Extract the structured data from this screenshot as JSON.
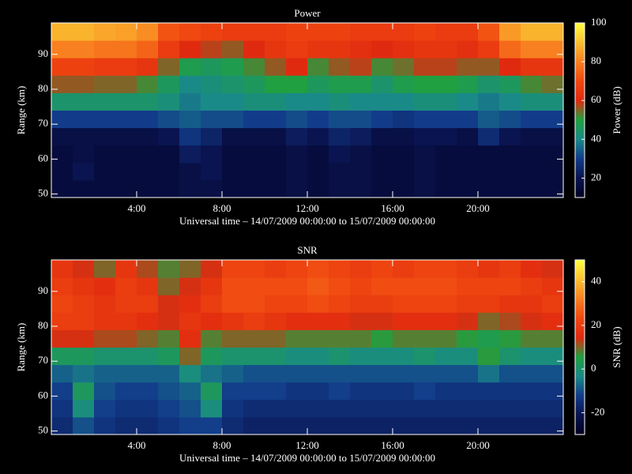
{
  "chart_data": [
    {
      "type": "heatmap",
      "title": "Power",
      "xlabel": "Universal time – 14/07/2009 00:00:00 to 15/07/2009 00:00:00",
      "ylabel": "Range (km)",
      "colorbar_label": "Power (dB)",
      "x": [
        0,
        1,
        2,
        3,
        4,
        5,
        6,
        7,
        8,
        9,
        10,
        11,
        12,
        13,
        14,
        15,
        16,
        17,
        18,
        19,
        20,
        21,
        22,
        23
      ],
      "y": [
        49,
        54,
        59,
        64,
        69,
        74,
        79,
        84,
        89,
        94
      ],
      "z": [
        [
          16,
          16,
          16,
          16,
          16,
          16,
          18,
          18,
          16,
          16,
          16,
          18,
          16,
          18,
          18,
          16,
          16,
          18,
          16,
          16,
          16,
          16,
          16,
          16
        ],
        [
          16,
          20,
          16,
          16,
          16,
          16,
          18,
          20,
          16,
          16,
          16,
          18,
          16,
          18,
          18,
          16,
          16,
          18,
          16,
          16,
          16,
          16,
          16,
          16
        ],
        [
          16,
          18,
          16,
          16,
          16,
          16,
          22,
          20,
          16,
          16,
          16,
          18,
          16,
          20,
          18,
          16,
          16,
          18,
          16,
          16,
          16,
          16,
          16,
          16
        ],
        [
          18,
          18,
          18,
          18,
          18,
          20,
          28,
          24,
          18,
          18,
          18,
          22,
          20,
          24,
          22,
          18,
          18,
          20,
          20,
          18,
          26,
          20,
          18,
          18
        ],
        [
          30,
          30,
          30,
          30,
          30,
          32,
          34,
          32,
          32,
          30,
          30,
          32,
          30,
          32,
          32,
          30,
          28,
          30,
          30,
          30,
          34,
          32,
          30,
          30
        ],
        [
          44,
          44,
          44,
          44,
          44,
          42,
          38,
          40,
          40,
          42,
          42,
          40,
          40,
          42,
          40,
          40,
          40,
          42,
          42,
          40,
          38,
          40,
          42,
          42
        ],
        [
          56,
          56,
          55,
          55,
          52,
          46,
          40,
          42,
          44,
          46,
          50,
          50,
          46,
          48,
          48,
          44,
          48,
          50,
          50,
          48,
          44,
          46,
          52,
          54
        ],
        [
          68,
          68,
          66,
          66,
          64,
          55,
          48,
          46,
          48,
          52,
          56,
          60,
          52,
          56,
          58,
          52,
          54,
          58,
          58,
          56,
          56,
          60,
          64,
          64
        ],
        [
          80,
          80,
          78,
          78,
          75,
          66,
          60,
          58,
          56,
          60,
          64,
          66,
          64,
          64,
          62,
          60,
          62,
          64,
          64,
          62,
          66,
          76,
          80,
          80
        ],
        [
          88,
          88,
          86,
          85,
          82,
          72,
          70,
          68,
          66,
          66,
          66,
          68,
          68,
          68,
          66,
          66,
          66,
          68,
          66,
          66,
          72,
          84,
          88,
          88
        ]
      ],
      "xlim": [
        0,
        24
      ],
      "ylim": [
        49,
        99
      ],
      "xticks": [
        {
          "value": 4,
          "label": "4:00"
        },
        {
          "value": 8,
          "label": "8:00"
        },
        {
          "value": 12,
          "label": "12:00"
        },
        {
          "value": 16,
          "label": "16:00"
        },
        {
          "value": 20,
          "label": "20:00"
        }
      ],
      "yticks": [
        50,
        60,
        70,
        80,
        90
      ],
      "zlim": [
        10,
        100
      ],
      "zticks": [
        20,
        40,
        60,
        80,
        100
      ],
      "colormap": [
        "#000020",
        "#0a1450",
        "#123c8a",
        "#1a8a88",
        "#20a040",
        "#e02a10",
        "#f04810",
        "#f88020",
        "#fbc030",
        "#ffff40"
      ]
    },
    {
      "type": "heatmap",
      "title": "SNR",
      "xlabel": "Universal time – 14/07/2009 00:00:00 to 15/07/2009 00:00:00",
      "ylabel": "Range (km)",
      "colorbar_label": "SNR (dB)",
      "x": [
        0,
        1,
        2,
        3,
        4,
        5,
        6,
        7,
        8,
        9,
        10,
        11,
        12,
        13,
        14,
        15,
        16,
        17,
        18,
        19,
        20,
        21,
        22,
        23
      ],
      "y": [
        49,
        54,
        59,
        64,
        69,
        74,
        79,
        84,
        89,
        94
      ],
      "z": [
        [
          -16,
          -10,
          -14,
          -16,
          -16,
          -14,
          -12,
          -12,
          -16,
          -18,
          -18,
          -18,
          -18,
          -18,
          -18,
          -18,
          -18,
          -18,
          -18,
          -18,
          -18,
          -18,
          -18,
          -18
        ],
        [
          -14,
          -2,
          -12,
          -14,
          -14,
          -12,
          -10,
          -2,
          -14,
          -16,
          -16,
          -16,
          -16,
          -16,
          -16,
          -16,
          -16,
          -16,
          -16,
          -16,
          -16,
          -16,
          -16,
          -16
        ],
        [
          -12,
          2,
          -10,
          -12,
          -12,
          -10,
          -8,
          2,
          -12,
          -12,
          -12,
          -14,
          -14,
          -12,
          -14,
          -14,
          -14,
          -12,
          -14,
          -14,
          -14,
          -14,
          -14,
          -14
        ],
        [
          -8,
          -6,
          -8,
          -8,
          -8,
          -8,
          -2,
          -6,
          -8,
          -10,
          -10,
          -10,
          -10,
          -10,
          -10,
          -10,
          -10,
          -10,
          -10,
          -10,
          -6,
          -10,
          -10,
          -10
        ],
        [
          2,
          2,
          0,
          0,
          0,
          2,
          10,
          2,
          0,
          0,
          0,
          -2,
          -2,
          0,
          -2,
          -2,
          -2,
          0,
          -2,
          -2,
          6,
          0,
          -2,
          -2
        ],
        [
          14,
          14,
          12,
          12,
          10,
          8,
          16,
          8,
          10,
          10,
          10,
          8,
          8,
          8,
          8,
          6,
          8,
          8,
          8,
          6,
          4,
          6,
          8,
          8
        ],
        [
          20,
          20,
          18,
          18,
          16,
          14,
          18,
          16,
          18,
          20,
          18,
          16,
          16,
          16,
          14,
          14,
          16,
          16,
          16,
          14,
          10,
          12,
          14,
          16
        ],
        [
          22,
          20,
          18,
          20,
          20,
          14,
          16,
          20,
          24,
          24,
          22,
          22,
          24,
          22,
          20,
          20,
          22,
          22,
          22,
          20,
          20,
          18,
          18,
          20
        ],
        [
          20,
          18,
          16,
          20,
          18,
          10,
          14,
          18,
          24,
          24,
          24,
          24,
          26,
          24,
          22,
          24,
          24,
          24,
          24,
          22,
          22,
          22,
          20,
          18
        ],
        [
          18,
          14,
          10,
          18,
          12,
          8,
          10,
          14,
          22,
          22,
          20,
          22,
          24,
          22,
          20,
          22,
          20,
          22,
          22,
          20,
          18,
          20,
          16,
          14
        ]
      ],
      "xlim": [
        0,
        24
      ],
      "ylim": [
        49,
        99
      ],
      "xticks": [
        {
          "value": 4,
          "label": "4:00"
        },
        {
          "value": 8,
          "label": "8:00"
        },
        {
          "value": 12,
          "label": "12:00"
        },
        {
          "value": 16,
          "label": "16:00"
        },
        {
          "value": 20,
          "label": "20:00"
        }
      ],
      "yticks": [
        50,
        60,
        70,
        80,
        90
      ],
      "zlim": [
        -30,
        50
      ],
      "zticks": [
        -20,
        0,
        20,
        40
      ],
      "colormap": [
        "#000020",
        "#0a1450",
        "#123c8a",
        "#1a8a88",
        "#20a040",
        "#e02a10",
        "#f04810",
        "#f88020",
        "#fbc030",
        "#ffff40"
      ]
    }
  ]
}
